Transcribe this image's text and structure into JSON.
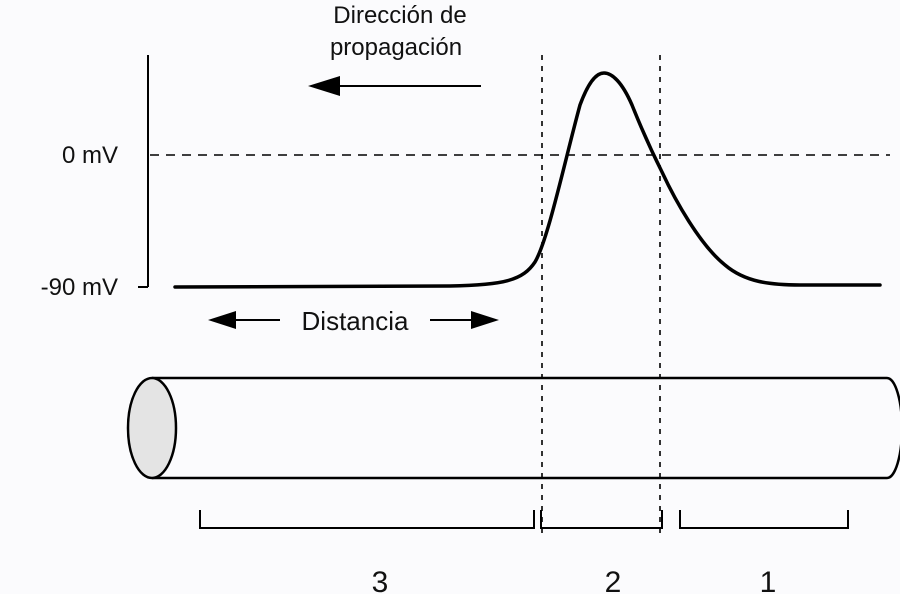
{
  "propagation": {
    "line1": "Dirección de",
    "line2": "propagación"
  },
  "axis": {
    "zero_label": "0 mV",
    "rest_label": "-90 mV"
  },
  "distance_label": "Distancia",
  "regions": [
    "3",
    "2",
    "1"
  ],
  "colors": {
    "stroke": "#000000",
    "text": "#111111",
    "axon_end": "#e4e4e4",
    "background": "#fbfbfd"
  }
}
